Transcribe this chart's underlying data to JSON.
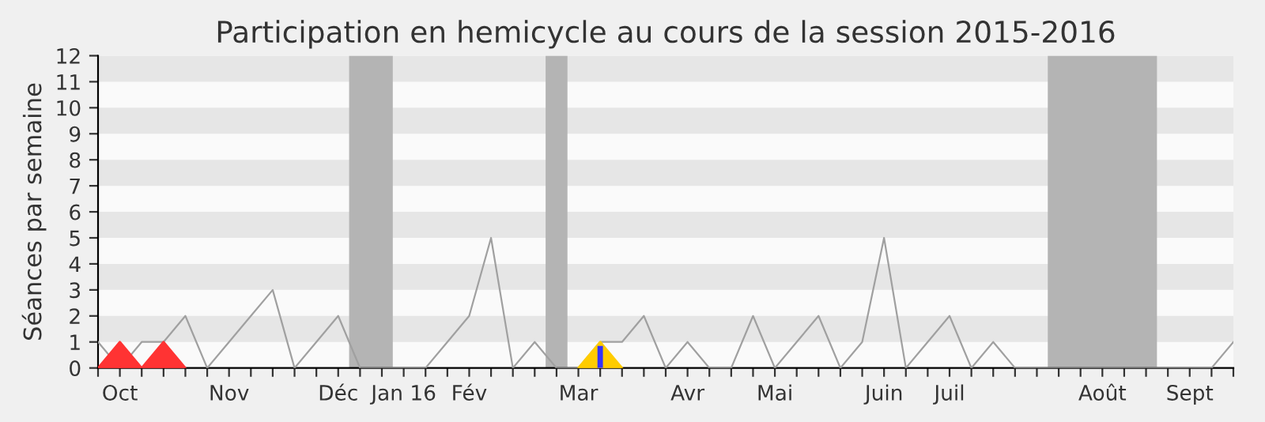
{
  "chart_data": {
    "type": "line",
    "title": "Participation en hemicycle au cours de la session 2015-2016",
    "ylabel": "Séances par semaine",
    "categories": [
      null,
      "Oct",
      null,
      null,
      null,
      null,
      "Nov",
      null,
      null,
      null,
      null,
      "Déc",
      null,
      null,
      "Jan 16",
      null,
      null,
      "Fév",
      null,
      null,
      null,
      null,
      "Mar",
      null,
      null,
      null,
      null,
      "Avr",
      null,
      null,
      null,
      "Mai",
      null,
      null,
      null,
      null,
      "Juin",
      null,
      null,
      "Juil",
      null,
      null,
      null,
      null,
      null,
      null,
      "Août",
      null,
      null,
      null,
      "Sept",
      null,
      null
    ],
    "series": [
      {
        "color": "#a0a0a0",
        "values": [
          1,
          0,
          1,
          1,
          2,
          0,
          1,
          2,
          3,
          0,
          1,
          2,
          0,
          0,
          0,
          0,
          1,
          2,
          5,
          0,
          1,
          0,
          0,
          1,
          1,
          2,
          0,
          1,
          0,
          0,
          2,
          0,
          1,
          2,
          0,
          1,
          5,
          0,
          1,
          2,
          0,
          1,
          0,
          0,
          0,
          0,
          0,
          0,
          0,
          0,
          0,
          0,
          1
        ]
      },
      {
        "type": "area",
        "color": "#ff3333",
        "values": [
          0,
          1,
          0,
          1,
          0,
          null,
          null,
          null,
          null,
          null,
          null,
          null,
          null,
          null,
          null,
          null,
          null,
          null,
          null,
          null,
          null,
          null,
          null,
          null,
          null,
          null,
          null,
          null,
          null,
          null,
          null,
          null,
          null,
          null,
          null,
          null,
          null,
          null,
          null,
          null,
          null,
          null,
          null,
          null,
          null,
          null,
          null,
          null,
          null,
          null,
          null,
          null,
          null
        ]
      },
      {
        "type": "area",
        "color": "#ffcc00",
        "values": [
          null,
          null,
          null,
          null,
          null,
          null,
          null,
          null,
          null,
          null,
          null,
          null,
          null,
          null,
          null,
          null,
          null,
          null,
          null,
          null,
          null,
          null,
          0,
          1,
          0,
          null,
          null,
          null,
          null,
          null,
          null,
          null,
          null,
          null,
          null,
          null,
          null,
          null,
          null,
          null,
          null,
          null,
          null,
          null,
          null,
          null,
          null,
          null,
          null,
          null,
          null,
          null,
          null
        ]
      },
      {
        "type": "bar",
        "color": "#3333ff",
        "values": [
          null,
          null,
          null,
          null,
          null,
          null,
          null,
          null,
          null,
          null,
          null,
          null,
          null,
          null,
          null,
          null,
          null,
          null,
          null,
          null,
          null,
          null,
          null,
          0.85,
          null,
          null,
          null,
          null,
          null,
          null,
          null,
          null,
          null,
          null,
          null,
          null,
          null,
          null,
          null,
          null,
          null,
          null,
          null,
          null,
          null,
          null,
          null,
          null,
          null,
          null,
          null,
          null,
          null
        ]
      }
    ],
    "ylim": [
      0,
      12
    ],
    "yticks": [
      0,
      1,
      2,
      3,
      4,
      5,
      6,
      7,
      8,
      9,
      10,
      11,
      12
    ]
  }
}
